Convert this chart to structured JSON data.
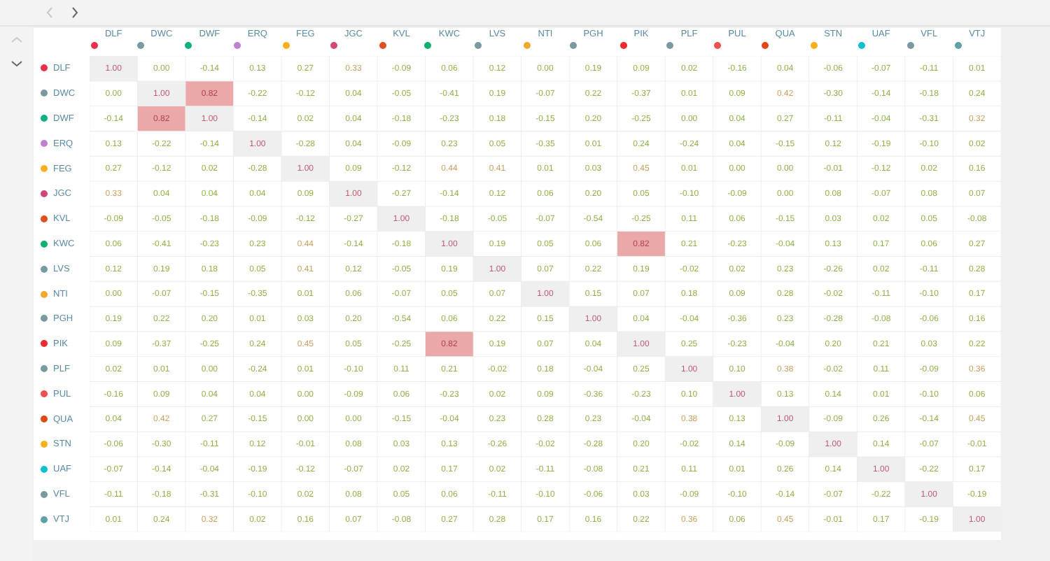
{
  "chart_data": {
    "type": "heatmap",
    "categories": [
      "DLF",
      "DWC",
      "DWF",
      "ERQ",
      "FEG",
      "JGC",
      "KVL",
      "KWC",
      "LVS",
      "NTI",
      "PGH",
      "PIK",
      "PLF",
      "PUL",
      "QUA",
      "STN",
      "UAF",
      "VFL",
      "VTJ"
    ],
    "y_categories": [
      "DLF",
      "DWC",
      "DWF",
      "ERQ",
      "FEG",
      "JGC",
      "KVL",
      "KWC",
      "LVS",
      "NTI",
      "PGH",
      "PIK",
      "PLF",
      "PUL",
      "QUA",
      "STN",
      "UAF",
      "VFL",
      "VTJ"
    ],
    "cells": [
      [
        1.0,
        0.0,
        -0.14,
        0.13,
        0.27,
        0.33,
        -0.09,
        0.06,
        0.12,
        0.0,
        0.19,
        0.09,
        0.02,
        -0.16,
        0.04,
        -0.06,
        -0.07,
        -0.11,
        0.01
      ],
      [
        0.0,
        1.0,
        0.82,
        -0.22,
        -0.12,
        0.04,
        -0.05,
        -0.41,
        0.19,
        -0.07,
        0.22,
        -0.37,
        0.01,
        0.09,
        0.42,
        -0.3,
        -0.14,
        -0.18,
        0.24
      ],
      [
        -0.14,
        0.82,
        1.0,
        -0.14,
        0.02,
        0.04,
        -0.18,
        -0.23,
        0.18,
        -0.15,
        0.2,
        -0.25,
        0.0,
        0.04,
        0.27,
        -0.11,
        -0.04,
        -0.31,
        0.32
      ],
      [
        0.13,
        -0.22,
        -0.14,
        1.0,
        -0.28,
        0.04,
        -0.09,
        0.23,
        0.05,
        -0.35,
        0.01,
        0.24,
        -0.24,
        0.04,
        -0.15,
        0.12,
        -0.19,
        -0.1,
        0.02
      ],
      [
        0.27,
        -0.12,
        0.02,
        -0.28,
        1.0,
        0.09,
        -0.12,
        0.44,
        0.41,
        0.01,
        0.03,
        0.45,
        0.01,
        0.0,
        0.0,
        -0.01,
        -0.12,
        0.02,
        0.16
      ],
      [
        0.33,
        0.04,
        0.04,
        0.04,
        0.09,
        1.0,
        -0.27,
        -0.14,
        0.12,
        0.06,
        0.2,
        0.05,
        -0.1,
        -0.09,
        0.0,
        0.08,
        -0.07,
        0.08,
        0.07
      ],
      [
        -0.09,
        -0.05,
        -0.18,
        -0.09,
        -0.12,
        -0.27,
        1.0,
        -0.18,
        -0.05,
        -0.07,
        -0.54,
        -0.25,
        0.11,
        0.06,
        -0.15,
        0.03,
        0.02,
        0.05,
        -0.08
      ],
      [
        0.06,
        -0.41,
        -0.23,
        0.23,
        0.44,
        -0.14,
        -0.18,
        1.0,
        0.19,
        0.05,
        0.06,
        0.82,
        0.21,
        -0.23,
        -0.04,
        0.13,
        0.17,
        0.06,
        0.27
      ],
      [
        0.12,
        0.19,
        0.18,
        0.05,
        0.41,
        0.12,
        -0.05,
        0.19,
        1.0,
        0.07,
        0.22,
        0.19,
        -0.02,
        0.02,
        0.23,
        -0.26,
        0.02,
        -0.11,
        0.28
      ],
      [
        0.0,
        -0.07,
        -0.15,
        -0.35,
        0.01,
        0.06,
        -0.07,
        0.05,
        0.07,
        1.0,
        0.15,
        0.07,
        0.18,
        0.09,
        0.28,
        -0.02,
        -0.11,
        -0.1,
        0.17
      ],
      [
        0.19,
        0.22,
        0.2,
        0.01,
        0.03,
        0.2,
        -0.54,
        0.06,
        0.22,
        0.15,
        1.0,
        0.04,
        -0.04,
        -0.36,
        0.23,
        -0.28,
        -0.08,
        -0.06,
        0.16
      ],
      [
        0.09,
        -0.37,
        -0.25,
        0.24,
        0.45,
        0.05,
        -0.25,
        0.82,
        0.19,
        0.07,
        0.04,
        1.0,
        0.25,
        -0.23,
        -0.04,
        0.2,
        0.21,
        0.03,
        0.22
      ],
      [
        0.02,
        0.01,
        0.0,
        -0.24,
        0.01,
        -0.1,
        0.11,
        0.21,
        -0.02,
        0.18,
        -0.04,
        0.25,
        1.0,
        0.1,
        0.38,
        -0.02,
        0.11,
        -0.09,
        0.36
      ],
      [
        -0.16,
        0.09,
        0.04,
        0.04,
        0.0,
        -0.09,
        0.06,
        -0.23,
        0.02,
        0.09,
        -0.36,
        -0.23,
        0.1,
        1.0,
        0.13,
        0.14,
        0.01,
        -0.1,
        0.06
      ],
      [
        0.04,
        0.42,
        0.27,
        -0.15,
        0.0,
        0.0,
        -0.15,
        -0.04,
        0.23,
        0.28,
        0.23,
        -0.04,
        0.38,
        0.13,
        1.0,
        -0.09,
        0.26,
        -0.14,
        0.45
      ],
      [
        -0.06,
        -0.3,
        -0.11,
        0.12,
        -0.01,
        0.08,
        0.03,
        0.13,
        -0.26,
        -0.02,
        -0.28,
        0.2,
        -0.02,
        0.14,
        -0.09,
        1.0,
        0.14,
        -0.07,
        -0.01
      ],
      [
        -0.07,
        -0.14,
        -0.04,
        -0.19,
        -0.12,
        -0.07,
        0.02,
        0.17,
        0.02,
        -0.11,
        -0.08,
        0.21,
        0.11,
        0.01,
        0.26,
        0.14,
        1.0,
        -0.22,
        0.17
      ],
      [
        -0.11,
        -0.18,
        -0.31,
        -0.1,
        0.02,
        0.08,
        0.05,
        0.06,
        -0.11,
        -0.1,
        -0.06,
        0.03,
        -0.09,
        -0.1,
        -0.14,
        -0.07,
        -0.22,
        1.0,
        -0.19
      ],
      [
        0.01,
        0.24,
        0.32,
        0.02,
        0.16,
        0.07,
        -0.08,
        0.27,
        0.28,
        0.17,
        0.16,
        0.22,
        0.36,
        0.06,
        0.45,
        -0.01,
        0.17,
        -0.19,
        1.0
      ]
    ],
    "cell_labels": [
      [
        "1.00",
        "0.00",
        "-0.14",
        "0.13",
        "0.27",
        "0.33",
        "-0.09",
        "0.06",
        "0.12",
        "0.00",
        "0.19",
        "0.09",
        "0.02",
        "-0.16",
        "0.04",
        "-0.06",
        "-0.07",
        "-0.11",
        "0.01"
      ],
      [
        "0.00",
        "1.00",
        "0.82",
        "-0.22",
        "-0.12",
        "0.04",
        "-0.05",
        "-0.41",
        "0.19",
        "-0.07",
        "0.22",
        "-0.37",
        "0.01",
        "0.09",
        "0.42",
        "-0.30",
        "-0.14",
        "-0.18",
        "0.24"
      ],
      [
        "-0.14",
        "0.82",
        "1.00",
        "-0.14",
        "0.02",
        "0.04",
        "-0.18",
        "-0.23",
        "0.18",
        "-0.15",
        "0.20",
        "-0.25",
        "0.00",
        "0.04",
        "0.27",
        "-0.11",
        "-0.04",
        "-0.31",
        "0.32"
      ],
      [
        "0.13",
        "-0.22",
        "-0.14",
        "1.00",
        "-0.28",
        "0.04",
        "-0.09",
        "0.23",
        "0.05",
        "-0.35",
        "0.01",
        "0.24",
        "-0.24",
        "0.04",
        "-0.15",
        "0.12",
        "-0.19",
        "-0.10",
        "0.02"
      ],
      [
        "0.27",
        "-0.12",
        "0.02",
        "-0.28",
        "1.00",
        "0.09",
        "-0.12",
        "0.44",
        "0.41",
        "0.01",
        "0.03",
        "0.45",
        "0.01",
        "0.00",
        "0.00",
        "-0.01",
        "-0.12",
        "0.02",
        "0.16"
      ],
      [
        "0.33",
        "0.04",
        "0.04",
        "0.04",
        "0.09",
        "1.00",
        "-0.27",
        "-0.14",
        "0.12",
        "0.06",
        "0.20",
        "0.05",
        "-0.10",
        "-0.09",
        "0.00",
        "0.08",
        "-0.07",
        "0.08",
        "0.07"
      ],
      [
        "-0.09",
        "-0.05",
        "-0.18",
        "-0.09",
        "-0.12",
        "-0.27",
        "1.00",
        "-0.18",
        "-0.05",
        "-0.07",
        "-0.54",
        "-0.25",
        "0.11",
        "0.06",
        "-0.15",
        "0.03",
        "0.02",
        "0.05",
        "-0.08"
      ],
      [
        "0.06",
        "-0.41",
        "-0.23",
        "0.23",
        "0.44",
        "-0.14",
        "-0.18",
        "1.00",
        "0.19",
        "0.05",
        "0.06",
        "0.82",
        "0.21",
        "-0.23",
        "-0.04",
        "0.13",
        "0.17",
        "0.06",
        "0.27"
      ],
      [
        "0.12",
        "0.19",
        "0.18",
        "0.05",
        "0.41",
        "0.12",
        "-0.05",
        "0.19",
        "1.00",
        "0.07",
        "0.22",
        "0.19",
        "-0.02",
        "0.02",
        "0.23",
        "-0.26",
        "0.02",
        "-0.11",
        "0.28"
      ],
      [
        "0.00",
        "-0.07",
        "-0.15",
        "-0.35",
        "0.01",
        "0.06",
        "-0.07",
        "0.05",
        "0.07",
        "1.00",
        "0.15",
        "0.07",
        "0.18",
        "0.09",
        "0.28",
        "-0.02",
        "-0.11",
        "-0.10",
        "0.17"
      ],
      [
        "0.19",
        "0.22",
        "0.20",
        "0.01",
        "0.03",
        "0.20",
        "-0.54",
        "0.06",
        "0.22",
        "0.15",
        "1.00",
        "0.04",
        "-0.04",
        "-0.36",
        "0.23",
        "-0.28",
        "-0.08",
        "-0.06",
        "0.16"
      ],
      [
        "0.09",
        "-0.37",
        "-0.25",
        "0.24",
        "0.45",
        "0.05",
        "-0.25",
        "0.82",
        "0.19",
        "0.07",
        "0.04",
        "1.00",
        "0.25",
        "-0.23",
        "-0.04",
        "0.20",
        "0.21",
        "0.03",
        "0.22"
      ],
      [
        "0.02",
        "0.01",
        "0.00",
        "-0.24",
        "0.01",
        "-0.10",
        "0.11",
        "0.21",
        "-0.02",
        "0.18",
        "-0.04",
        "0.25",
        "1.00",
        "0.10",
        "0.38",
        "-0.02",
        "0.11",
        "-0.09",
        "0.36"
      ],
      [
        "-0.16",
        "0.09",
        "0.04",
        "0.04",
        "0.00",
        "-0.09",
        "0.06",
        "-0.23",
        "0.02",
        "0.09",
        "-0.36",
        "-0.23",
        "0.10",
        "1.00",
        "0.13",
        "0.14",
        "0.01",
        "-0.10",
        "0.06"
      ],
      [
        "0.04",
        "0.42",
        "0.27",
        "-0.15",
        "0.00",
        "0.00",
        "-0.15",
        "-0.04",
        "0.23",
        "0.28",
        "0.23",
        "-0.04",
        "0.38",
        "0.13",
        "1.00",
        "-0.09",
        "0.26",
        "-0.14",
        "0.45"
      ],
      [
        "-0.06",
        "-0.30",
        "-0.11",
        "0.12",
        "-0.01",
        "0.08",
        "0.03",
        "0.13",
        "-0.26",
        "-0.02",
        "-0.28",
        "0.20",
        "-0.02",
        "0.14",
        "-0.09",
        "1.00",
        "0.14",
        "-0.07",
        "-0.01"
      ],
      [
        "-0.07",
        "-0.14",
        "-0.04",
        "-0.19",
        "-0.12",
        "-0.07",
        "0.02",
        "0.17",
        "0.02",
        "-0.11",
        "-0.08",
        "0.21",
        "0.11",
        "0.01",
        "0.26",
        "0.14",
        "1.00",
        "-0.22",
        "0.17"
      ],
      [
        "-0.11",
        "-0.18",
        "-0.31",
        "-0.10",
        "0.02",
        "0.08",
        "0.05",
        "0.06",
        "-0.11",
        "-0.10",
        "-0.06",
        "0.03",
        "-0.09",
        "-0.10",
        "-0.14",
        "-0.07",
        "-0.22",
        "1.00",
        "-0.19"
      ],
      [
        "0.01",
        "0.24",
        "0.32",
        "0.02",
        "0.16",
        "0.07",
        "-0.08",
        "0.27",
        "0.28",
        "0.17",
        "0.16",
        "0.22",
        "0.36",
        "0.06",
        "0.45",
        "-0.01",
        "0.17",
        "-0.19",
        "1.00"
      ]
    ],
    "data_labels": true
  }
}
